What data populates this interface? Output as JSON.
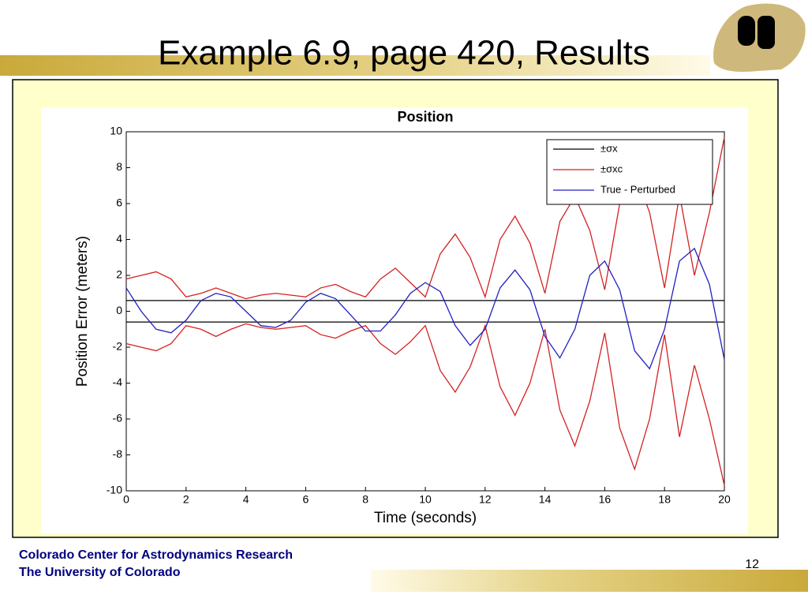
{
  "slide": {
    "title": "Example 6.9, page 420, Results",
    "footer_line1": "Colorado Center for Astrodynamics Research",
    "footer_line2": "The University of Colorado",
    "page_number": "12"
  },
  "chart_data": {
    "type": "line",
    "title": "Position",
    "xlabel": "Time (seconds)",
    "ylabel": "Position Error (meters)",
    "xlim": [
      0,
      20
    ],
    "xticks": [
      0,
      2,
      4,
      6,
      8,
      10,
      12,
      14,
      16,
      18,
      20
    ],
    "ylim": [
      -10,
      10
    ],
    "yticks": [
      -10,
      -8,
      -6,
      -4,
      -2,
      0,
      2,
      4,
      6,
      8,
      10
    ],
    "grid": false,
    "legend": "upper right",
    "x": [
      0,
      0.5,
      1,
      1.5,
      2,
      2.5,
      3,
      3.5,
      4,
      4.5,
      5,
      5.5,
      6,
      6.5,
      7,
      7.5,
      8,
      8.5,
      9,
      9.5,
      10,
      10.5,
      11,
      11.5,
      12,
      12.5,
      13,
      13.5,
      14,
      14.5,
      15,
      15.5,
      16,
      16.5,
      17,
      17.5,
      18,
      18.5,
      19,
      19.5,
      20
    ],
    "series": [
      {
        "name": "±σx",
        "color": "#000000",
        "x": [
          0,
          20
        ],
        "values": [
          0.6,
          0.6
        ],
        "lower": [
          -0.6,
          -0.6
        ]
      },
      {
        "name": "±σxc",
        "color": "#d42020",
        "values": [
          1.8,
          2.0,
          2.2,
          1.8,
          0.8,
          1.0,
          1.3,
          1.0,
          0.7,
          0.9,
          1.0,
          0.9,
          0.8,
          1.3,
          1.5,
          1.1,
          0.8,
          1.8,
          2.4,
          1.6,
          0.8,
          3.2,
          4.3,
          3.0,
          0.8,
          4.0,
          5.3,
          3.8,
          1.0,
          5.0,
          6.4,
          4.5,
          1.2,
          6.0,
          7.8,
          5.5,
          1.3,
          6.5,
          2.0,
          5.5,
          9.7
        ],
        "lower": [
          -1.8,
          -2.0,
          -2.2,
          -1.8,
          -0.8,
          -1.0,
          -1.4,
          -1.0,
          -0.7,
          -0.9,
          -1.0,
          -0.9,
          -0.8,
          -1.3,
          -1.5,
          -1.1,
          -0.8,
          -1.8,
          -2.4,
          -1.7,
          -0.8,
          -3.3,
          -4.5,
          -3.1,
          -0.8,
          -4.2,
          -5.8,
          -4.0,
          -1.0,
          -5.5,
          -7.5,
          -5.0,
          -1.2,
          -6.5,
          -8.8,
          -6.0,
          -1.3,
          -7.0,
          -3.0,
          -6.0,
          -9.7
        ]
      },
      {
        "name": "True - Perturbed",
        "color": "#2020c0",
        "values": [
          1.3,
          0,
          -1.0,
          -1.2,
          -0.5,
          0.6,
          1.0,
          0.8,
          0,
          -0.8,
          -0.9,
          -0.5,
          0.5,
          1.0,
          0.7,
          -0.2,
          -1.1,
          -1.1,
          -0.2,
          1.0,
          1.6,
          1.1,
          -0.8,
          -1.9,
          -1.0,
          1.3,
          2.3,
          1.2,
          -1.4,
          -2.6,
          -1.0,
          2.0,
          2.8,
          1.2,
          -2.2,
          -3.2,
          -1.0,
          2.8,
          3.5,
          1.5,
          -2.7
        ]
      }
    ]
  }
}
